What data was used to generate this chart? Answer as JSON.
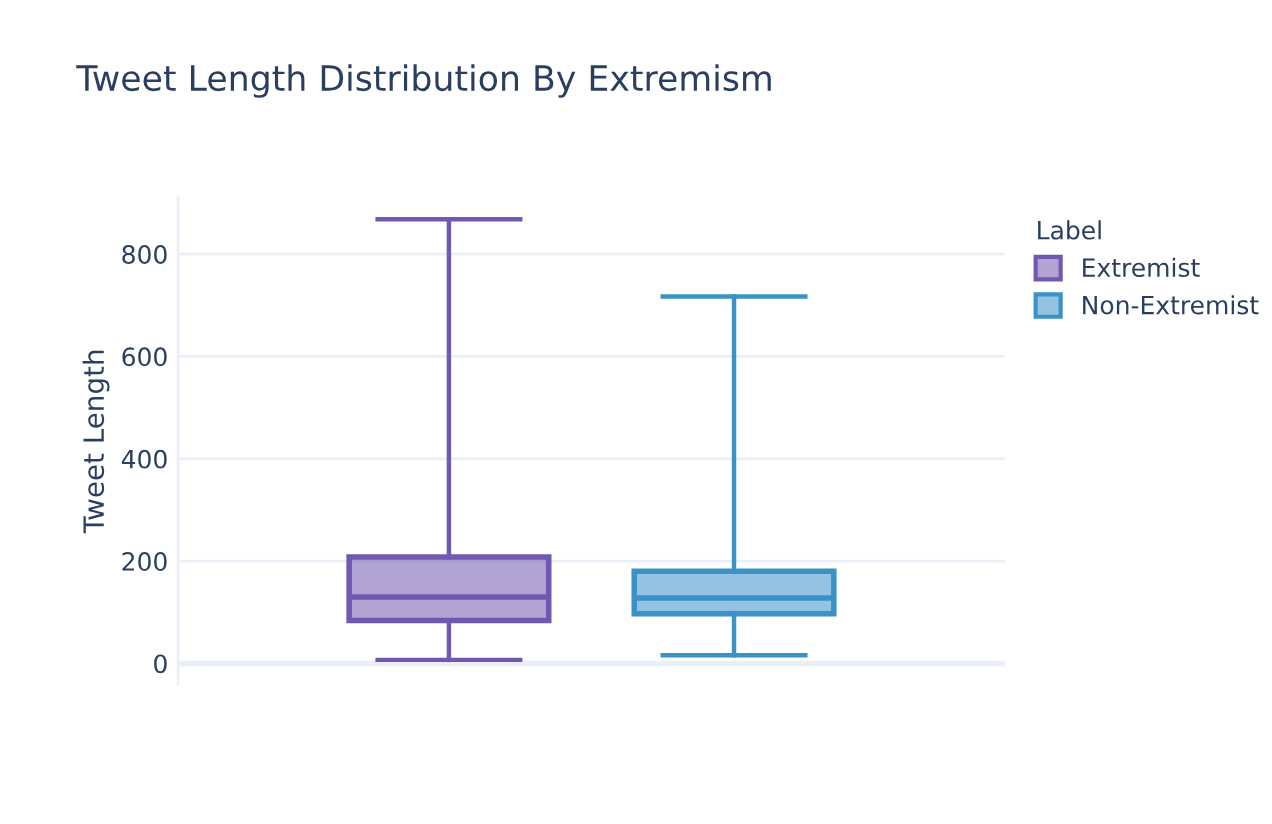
{
  "chart_data": {
    "type": "box",
    "title": "Tweet Length Distribution By Extremism",
    "ylabel": "Tweet Length",
    "legend_title": "Label",
    "categories": [
      null,
      null
    ],
    "series": [
      {
        "name": "Extremist",
        "color": "#7158b0",
        "boxes": [
          {
            "low": 7,
            "q1": 84,
            "median": 130,
            "q3": 208,
            "high": 868
          },
          null
        ]
      },
      {
        "name": "Non-Extremist",
        "color": "#3a92c6",
        "boxes": [
          null,
          {
            "low": 16,
            "q1": 97,
            "median": 128,
            "q3": 180,
            "high": 717
          }
        ]
      }
    ],
    "ylim": [
      -40,
      910
    ],
    "yticks": [
      0,
      200,
      400,
      600,
      800
    ],
    "grid": "y",
    "legend": "top right"
  }
}
